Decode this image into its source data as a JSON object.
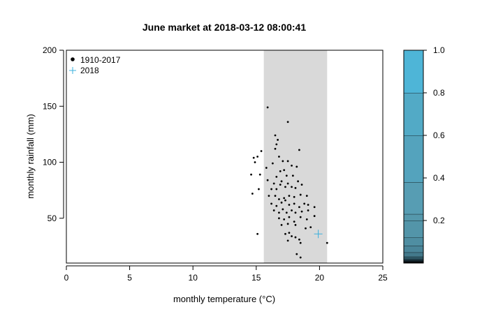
{
  "chart_data": {
    "type": "scatter",
    "title": "June market at 2018-03-12 08:00:41",
    "xlabel": "monthly temperature (°C)",
    "ylabel": "monthly rainfall (mm)",
    "xlim": [
      0,
      25
    ],
    "ylim": [
      10,
      200
    ],
    "xticks": [
      "0",
      "5",
      "10",
      "15",
      "20",
      "25"
    ],
    "yticks": [
      "50",
      "100",
      "150",
      "200"
    ],
    "grid": false,
    "legend_position": "top-left",
    "shaded_band": {
      "x_from": 15.6,
      "x_to": 20.6,
      "color": "#d9d9d9"
    },
    "series": [
      {
        "name": "1910-2017",
        "marker": "dot",
        "color": "#000000",
        "points": [
          [
            15.9,
            149
          ],
          [
            17.5,
            136
          ],
          [
            16.5,
            124
          ],
          [
            16.7,
            120
          ],
          [
            16.6,
            116
          ],
          [
            16.5,
            112
          ],
          [
            15.4,
            110
          ],
          [
            18.4,
            111
          ],
          [
            15.1,
            105
          ],
          [
            16.8,
            105
          ],
          [
            14.8,
            104
          ],
          [
            14.9,
            100
          ],
          [
            17.1,
            101
          ],
          [
            17.5,
            101
          ],
          [
            16.3,
            99
          ],
          [
            17.8,
            97
          ],
          [
            15.8,
            95
          ],
          [
            16.9,
            92
          ],
          [
            17.2,
            93
          ],
          [
            18.2,
            96
          ],
          [
            14.6,
            89
          ],
          [
            15.3,
            89
          ],
          [
            16.6,
            87
          ],
          [
            17.4,
            88
          ],
          [
            17.9,
            88
          ],
          [
            15.9,
            84
          ],
          [
            16.4,
            81
          ],
          [
            17.0,
            83
          ],
          [
            17.5,
            81
          ],
          [
            18.3,
            83
          ],
          [
            14.7,
            72
          ],
          [
            15.2,
            76
          ],
          [
            16.2,
            76
          ],
          [
            16.6,
            76
          ],
          [
            16.9,
            80
          ],
          [
            17.3,
            78
          ],
          [
            17.8,
            78
          ],
          [
            18.1,
            77
          ],
          [
            18.6,
            80
          ],
          [
            16.0,
            70
          ],
          [
            16.5,
            70
          ],
          [
            16.8,
            67
          ],
          [
            17.2,
            68
          ],
          [
            17.6,
            70
          ],
          [
            18.0,
            69
          ],
          [
            18.5,
            71
          ],
          [
            19.0,
            70
          ],
          [
            16.2,
            63
          ],
          [
            16.6,
            61
          ],
          [
            17.0,
            64
          ],
          [
            17.3,
            66
          ],
          [
            17.6,
            62
          ],
          [
            18.0,
            63
          ],
          [
            18.4,
            60
          ],
          [
            18.8,
            63
          ],
          [
            19.1,
            62
          ],
          [
            19.6,
            60
          ],
          [
            16.4,
            57
          ],
          [
            16.8,
            55
          ],
          [
            17.1,
            58
          ],
          [
            17.4,
            55
          ],
          [
            17.8,
            57
          ],
          [
            18.1,
            55
          ],
          [
            18.6,
            56
          ],
          [
            19.1,
            57
          ],
          [
            19.6,
            52
          ],
          [
            16.8,
            50
          ],
          [
            17.2,
            49
          ],
          [
            17.6,
            51
          ],
          [
            18.0,
            47
          ],
          [
            18.5,
            51
          ],
          [
            19.0,
            49
          ],
          [
            17.0,
            44
          ],
          [
            17.5,
            45
          ],
          [
            18.1,
            44
          ],
          [
            18.9,
            41
          ],
          [
            19.3,
            42
          ],
          [
            17.3,
            36
          ],
          [
            17.6,
            37
          ],
          [
            18.1,
            33
          ],
          [
            17.5,
            30
          ],
          [
            18.4,
            31
          ],
          [
            17.8,
            34
          ],
          [
            15.1,
            36
          ],
          [
            18.5,
            28
          ],
          [
            18.2,
            18
          ],
          [
            18.5,
            15
          ],
          [
            20.6,
            28
          ]
        ]
      },
      {
        "name": "2018",
        "marker": "plus",
        "color": "#3bb0de",
        "points": [
          [
            19.9,
            36
          ]
        ]
      }
    ],
    "colorbar": {
      "ticks": [
        "0.2",
        "0.4",
        "0.6",
        "0.8",
        "1.0"
      ],
      "range": [
        0,
        1.0
      ],
      "tick_values": [
        0.2,
        0.4,
        0.6,
        0.8,
        1.0
      ],
      "levels": [
        0.0,
        0.005,
        0.012,
        0.02,
        0.03,
        0.05,
        0.08,
        0.12,
        0.2,
        0.23,
        0.38,
        0.6,
        0.8,
        1.0
      ],
      "colors": [
        "#000000",
        "#0e1a20",
        "#23424f",
        "#335f6e",
        "#43798b",
        "#4a8599",
        "#4f8ea2",
        "#5395a9",
        "#5598ac",
        "#579db3",
        "#54a3bd",
        "#52aac6",
        "#4eb5d7"
      ]
    }
  }
}
